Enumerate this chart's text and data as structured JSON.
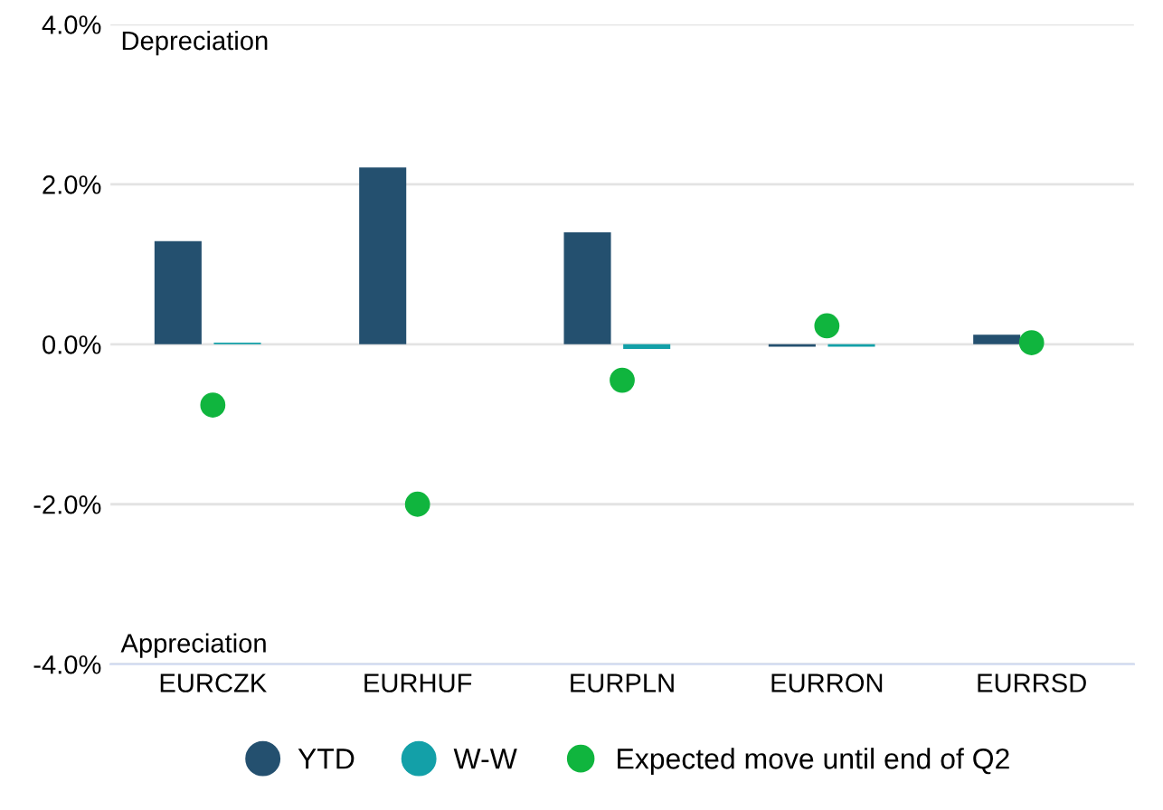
{
  "chart_data": {
    "type": "bar",
    "categories": [
      "EURCZK",
      "EURHUF",
      "EURPLN",
      "EURRON",
      "EURRSD"
    ],
    "series": [
      {
        "name": "YTD",
        "color": "#24506f",
        "values": [
          1.29,
          2.21,
          1.4,
          -0.03,
          0.12
        ]
      },
      {
        "name": "W-W",
        "color": "#13a0a8",
        "values": [
          0.02,
          null,
          -0.06,
          -0.03,
          null
        ]
      },
      {
        "name": "Expected move until end of Q2",
        "type": "scatter",
        "color": "#10b53e",
        "marker": "circle",
        "values": [
          -0.76,
          -2.0,
          -0.45,
          0.23,
          0.02
        ]
      }
    ],
    "ylim": [
      -4,
      4
    ],
    "yticks": [
      {
        "value": -4,
        "label": "-4.0%"
      },
      {
        "value": -2,
        "label": "-2.0%"
      },
      {
        "value": 0,
        "label": "0.0%"
      },
      {
        "value": 2,
        "label": "2.0%"
      },
      {
        "value": 4,
        "label": "4.0%"
      }
    ],
    "annotations": [
      "Depreciation",
      "Appreciation"
    ],
    "grid": "y",
    "legend": "bottom"
  }
}
